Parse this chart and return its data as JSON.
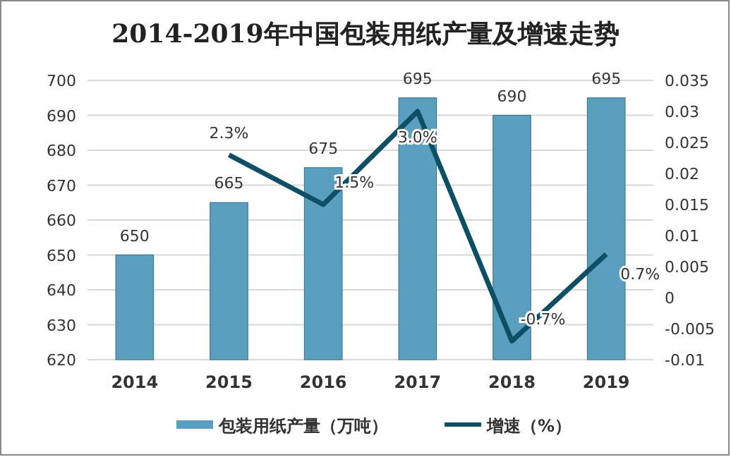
{
  "chart_data": {
    "type": "bar",
    "title": "2014-2019年中国包装用纸产量及增速走势",
    "categories": [
      "2014",
      "2015",
      "2016",
      "2017",
      "2018",
      "2019"
    ],
    "series": [
      {
        "name": "包装用纸产量（万吨）",
        "color": "#5b9fbf",
        "values": [
          650,
          665,
          675,
          695,
          690,
          695
        ],
        "value_labels": [
          "650",
          "665",
          "675",
          "695",
          "690",
          "695"
        ]
      },
      {
        "name": "增速（%）",
        "type": "line",
        "axis": "y2",
        "color": "#0e4f66",
        "values": [
          null,
          0.023,
          0.015,
          0.03,
          -0.007,
          0.007
        ],
        "value_labels": [
          null,
          "2.3%",
          "1.5%",
          "3.0%",
          "-0.7%",
          "0.7%"
        ]
      }
    ],
    "ylim": [
      620,
      700
    ],
    "yticks": [
      620,
      630,
      640,
      650,
      660,
      670,
      680,
      690,
      700
    ],
    "y2lim": [
      -0.01,
      0.035
    ],
    "y2ticks": [
      -0.01,
      -0.005,
      0,
      0.005,
      0.01,
      0.015,
      0.02,
      0.025,
      0.03,
      0.035
    ],
    "grid": "y",
    "legend": "bottom"
  }
}
